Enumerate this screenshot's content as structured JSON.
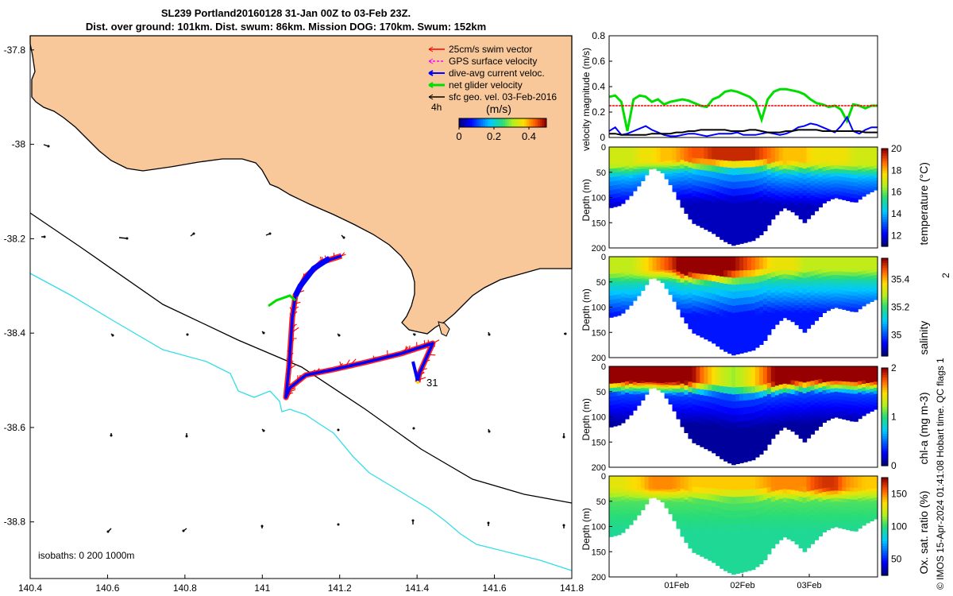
{
  "header": {
    "line1": "SL239 Portland20160128 31-Jan 00Z to 03-Feb 23Z.",
    "line2": "Dist. over ground: 101km. Dist. swum: 86km. Mission DOG: 170km. Swum: 152km"
  },
  "credit": "© IMOS 15-Apr-2024 01:41:08 Hobart time. QC flags 1",
  "credit_extra": "2",
  "colors": {
    "land": "#f8c89a",
    "coast": "#000000",
    "isobath_200": "#000000",
    "isobath_1000": "#33dde8",
    "swim": "#ff0000",
    "gps": "#ff00ff",
    "dive_avg": "#0000ff",
    "net": "#00dd00",
    "sfc_geo": "#000000"
  },
  "chart_data": [
    {
      "id": "map",
      "type": "map",
      "x_ticks": [
        "140.4",
        "140.6",
        "140.8",
        "141",
        "141.2",
        "141.4",
        "141.6",
        "141.8"
      ],
      "y_ticks": [
        "-37.8",
        "-38",
        "-38.2",
        "-38.4",
        "-38.6",
        "-38.8"
      ],
      "xlim": [
        140.4,
        141.8
      ],
      "ylim": [
        -38.92,
        -37.77
      ],
      "legend": [
        {
          "label": "25cm/s swim vector",
          "color": "#ff0000"
        },
        {
          "label": "GPS surface velocity",
          "color": "#ff00ff"
        },
        {
          "label": "dive-avg current veloc.",
          "color": "#0000ff"
        },
        {
          "label": "net glider velocity",
          "color": "#00dd00"
        },
        {
          "label": "sfc geo. vel. 03-Feb-2016",
          "color": "#000000"
        }
      ],
      "time_label": "4h",
      "colorbar": {
        "unit": "(m/s)",
        "ticks": [
          "0",
          "0.2",
          "0.4"
        ],
        "range": [
          0,
          0.5
        ]
      },
      "isobaths_note": "isobaths: 0   200  1000m",
      "end_label": "31"
    },
    {
      "id": "velocity",
      "type": "line",
      "ylabel": "velocity magnitude (m/s)",
      "ylim": [
        0,
        0.8
      ],
      "y_ticks": [
        "0",
        "0.2",
        "0.4",
        "0.6",
        "0.8"
      ],
      "series": [
        {
          "color": "#00dd00",
          "values": [
            0.32,
            0.33,
            0.28,
            0.05,
            0.3,
            0.33,
            0.32,
            0.28,
            0.3,
            0.26,
            0.28,
            0.29,
            0.3,
            0.29,
            0.27,
            0.25,
            0.24,
            0.3,
            0.32,
            0.36,
            0.37,
            0.36,
            0.34,
            0.32,
            0.28,
            0.14,
            0.3,
            0.36,
            0.38,
            0.38,
            0.37,
            0.36,
            0.34,
            0.3,
            0.27,
            0.26,
            0.24,
            0.25,
            0.22,
            0.13,
            0.26,
            0.25,
            0.23,
            0.25,
            0.25
          ]
        },
        {
          "color": "#ff0000",
          "values": [
            0.25,
            0.25,
            0.25,
            0.25,
            0.25,
            0.25,
            0.25,
            0.25,
            0.25,
            0.25,
            0.25,
            0.25,
            0.25,
            0.25,
            0.25,
            0.25,
            0.25,
            0.25,
            0.25,
            0.25,
            0.25,
            0.25,
            0.25,
            0.25,
            0.25,
            0.25,
            0.25,
            0.25,
            0.25,
            0.25,
            0.25,
            0.25,
            0.25,
            0.25,
            0.25,
            0.25,
            0.25,
            0.25,
            0.25,
            0.25,
            0.25,
            0.25,
            0.25,
            0.25,
            0.25
          ]
        },
        {
          "color": "#0000ff",
          "values": [
            0.05,
            0.08,
            0.02,
            0.03,
            0.05,
            0.07,
            0.09,
            0.06,
            0.04,
            0.02,
            0.01,
            0.01,
            0.02,
            0.03,
            0.03,
            0.02,
            0.01,
            0.02,
            0.03,
            0.03,
            0.03,
            0.04,
            0.02,
            0.02,
            0.02,
            0.03,
            0.04,
            0.03,
            0.02,
            0.03,
            0.05,
            0.08,
            0.09,
            0.11,
            0.1,
            0.08,
            0.06,
            0.04,
            0.09,
            0.16,
            0.05,
            0.03,
            0.06,
            0.08,
            0.08
          ]
        },
        {
          "color": "#000000",
          "values": [
            0.03,
            0.03,
            0.02,
            0.02,
            0.02,
            0.02,
            0.02,
            0.03,
            0.03,
            0.03,
            0.03,
            0.04,
            0.04,
            0.05,
            0.05,
            0.06,
            0.06,
            0.06,
            0.06,
            0.06,
            0.05,
            0.05,
            0.05,
            0.06,
            0.06,
            0.05,
            0.04,
            0.04,
            0.04,
            0.05,
            0.05,
            0.06,
            0.06,
            0.06,
            0.06,
            0.05,
            0.05,
            0.05,
            0.05,
            0.05,
            0.05,
            0.05,
            0.04,
            0.04,
            0.04
          ]
        }
      ]
    },
    {
      "id": "temperature",
      "type": "heatmap",
      "ylabel": "Depth (m)",
      "cblabel": "temperature (°C)",
      "y_ticks": [
        "0",
        "50",
        "100",
        "150",
        "200"
      ],
      "cb_ticks": [
        "12",
        "14",
        "16",
        "18",
        "20"
      ],
      "crange": [
        11,
        20
      ],
      "bottom_depth": [
        120,
        115,
        95,
        70,
        40,
        50,
        80,
        120,
        150,
        160,
        170,
        185,
        195,
        190,
        185,
        170,
        140,
        120,
        130,
        150,
        130,
        110,
        100,
        105,
        110,
        95,
        85
      ],
      "surface_value": [
        17,
        17,
        17,
        17.5,
        17.5,
        18,
        18,
        18.5,
        19,
        19,
        19.5,
        19.5,
        19.5,
        19.5,
        19.5,
        19,
        18.5,
        18,
        18,
        18,
        17.5,
        17.5,
        17.5,
        17.5,
        17,
        17,
        17
      ],
      "mixed_depth": [
        35,
        35,
        35,
        30,
        30,
        28,
        28,
        25,
        25,
        25,
        25,
        25,
        25,
        25,
        25,
        25,
        28,
        30,
        30,
        30,
        32,
        32,
        32,
        32,
        35,
        35,
        35
      ]
    },
    {
      "id": "salinity",
      "type": "heatmap",
      "ylabel": "Depth (m)",
      "cblabel": "salinity",
      "y_ticks": [
        "0",
        "50",
        "100",
        "150",
        "200"
      ],
      "cb_ticks": [
        "35",
        "35.2",
        "35.4"
      ],
      "crange": [
        34.85,
        35.55
      ],
      "bottom_depth": [
        120,
        115,
        95,
        70,
        40,
        50,
        80,
        120,
        150,
        160,
        170,
        185,
        195,
        190,
        185,
        170,
        140,
        120,
        130,
        150,
        130,
        110,
        100,
        105,
        110,
        95,
        85
      ],
      "surface_value": [
        35.3,
        35.3,
        35.3,
        35.35,
        35.4,
        35.45,
        35.5,
        35.6,
        35.6,
        35.6,
        35.6,
        35.6,
        35.55,
        35.5,
        35.45,
        35.4,
        35.35,
        35.35,
        35.35,
        35.3,
        35.3,
        35.3,
        35.3,
        35.3,
        35.3,
        35.3,
        35.3
      ],
      "mixed_depth": [
        30,
        30,
        30,
        28,
        28,
        25,
        25,
        30,
        30,
        30,
        30,
        30,
        30,
        28,
        28,
        25,
        25,
        25,
        25,
        25,
        25,
        25,
        25,
        25,
        25,
        25,
        25
      ]
    },
    {
      "id": "chla",
      "type": "heatmap",
      "ylabel": "Depth (m)",
      "cblabel": "chl-a (mg m-3)",
      "y_ticks": [
        "0",
        "50",
        "100",
        "150",
        "200"
      ],
      "cb_ticks": [
        "0",
        "1",
        "2"
      ],
      "crange": [
        0,
        2
      ],
      "bottom_depth": [
        120,
        115,
        95,
        70,
        40,
        50,
        80,
        120,
        150,
        160,
        170,
        185,
        195,
        190,
        185,
        170,
        140,
        120,
        130,
        150,
        130,
        110,
        100,
        105,
        110,
        95,
        85
      ],
      "surface_value": [
        2,
        2,
        2,
        2,
        2,
        2,
        2,
        2,
        2,
        1.7,
        1.5,
        1.3,
        1.2,
        1.3,
        1.5,
        1.7,
        2,
        2,
        2,
        2,
        2,
        2,
        2,
        2,
        2,
        2,
        2
      ],
      "mixed_depth": [
        30,
        30,
        30,
        30,
        30,
        32,
        32,
        32,
        32,
        32,
        32,
        35,
        38,
        40,
        38,
        36,
        34,
        32,
        30,
        30,
        28,
        28,
        28,
        28,
        30,
        30,
        30
      ]
    },
    {
      "id": "oxygen",
      "type": "heatmap",
      "ylabel": "Depth (m)",
      "cblabel": "Ox. sat. ratio (%)",
      "y_ticks": [
        "0",
        "50",
        "100",
        "150",
        "200"
      ],
      "cb_ticks": [
        "50",
        "100",
        "150"
      ],
      "crange": [
        25,
        175
      ],
      "bottom_depth": [
        120,
        115,
        95,
        70,
        40,
        50,
        80,
        120,
        150,
        160,
        170,
        185,
        195,
        190,
        185,
        170,
        140,
        120,
        130,
        150,
        130,
        110,
        100,
        105,
        110,
        95,
        85
      ],
      "surface_value": [
        130,
        130,
        135,
        140,
        150,
        150,
        150,
        145,
        140,
        140,
        140,
        140,
        140,
        140,
        140,
        145,
        150,
        150,
        150,
        150,
        160,
        165,
        165,
        150,
        145,
        140,
        140
      ],
      "mixed_depth": [
        25,
        25,
        25,
        25,
        25,
        25,
        25,
        25,
        25,
        25,
        25,
        25,
        25,
        25,
        25,
        25,
        25,
        25,
        25,
        25,
        25,
        25,
        25,
        25,
        25,
        25,
        25
      ],
      "x_ticks": [
        "01Feb",
        "02Feb",
        "03Feb"
      ]
    }
  ]
}
